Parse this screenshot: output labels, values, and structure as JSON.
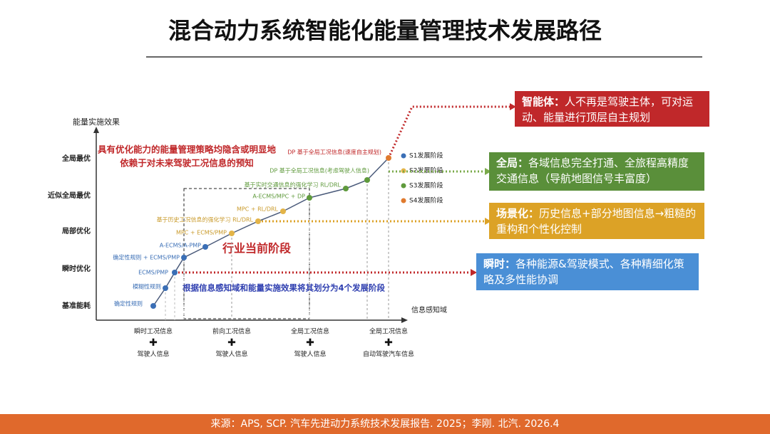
{
  "title": "混合动力系统智能化能量管理技术发展路径",
  "y_axis": {
    "label": "能量实施效果",
    "levels": [
      "全局最优",
      "近似全局最优",
      "局部优化",
      "瞬时优化",
      "基准能耗"
    ]
  },
  "x_axis": {
    "label": "信息感知域",
    "groups": [
      {
        "top": "瞬时工况信息",
        "bottom": "驾驶人信息"
      },
      {
        "top": "前向工况信息",
        "bottom": "驾驶人信息"
      },
      {
        "top": "全局工况信息",
        "bottom": "驾驶人信息"
      },
      {
        "top": "全局工况信息",
        "bottom": "自动驾驶汽车信息"
      }
    ]
  },
  "note": [
    "具有优化能力的能量管理策略均隐含或明显地",
    "依赖于对未来驾驶工况信息的预知"
  ],
  "current_stage": "行业当前阶段",
  "stage_note": "根据信息感知域和能量实施效果将其划分为4个发展阶段",
  "legend": [
    {
      "label": "S1发展阶段",
      "color": "#3b6fb6"
    },
    {
      "label": "S2发展阶段",
      "color": "#e3b448"
    },
    {
      "label": "S3发展阶段",
      "color": "#5f9a3c"
    },
    {
      "label": "S4发展阶段",
      "color": "#e07a2e"
    }
  ],
  "points": [
    {
      "label": "确定性规则",
      "color": "#3b6fb6"
    },
    {
      "label": "模糊性规则",
      "color": "#3b6fb6"
    },
    {
      "label": "ECMS/PMP",
      "color": "#3b6fb6"
    },
    {
      "label": "确定性规则 + ECMS/PMP",
      "color": "#3b6fb6"
    },
    {
      "label": "A-ECMS/A-PMP",
      "color": "#3b6fb6"
    },
    {
      "label": "MPC + ECMS/PMP",
      "color": "#e3b448"
    },
    {
      "label": "基于历史工况信息的强化学习 RL/DRL",
      "color": "#e3b448"
    },
    {
      "label": "MPC + RL/DRL",
      "color": "#e3b448"
    },
    {
      "label": "A-ECMS/MPC + DP",
      "color": "#5f9a3c"
    },
    {
      "label": "基于实时交通信息的强化学习 RL/DRL",
      "color": "#5f9a3c"
    },
    {
      "label": "DP 基于全局工况信息(考虑驾驶人信息)",
      "color": "#5f9a3c"
    },
    {
      "label": "DP 基于全局工况信息(速度自主规划)",
      "color": "#e07a2e"
    }
  ],
  "boxes": [
    {
      "heading": "智能体：",
      "text": "人不再是驾驶主体，可对运动、能量进行顶层自主规划",
      "color": "#c0282a"
    },
    {
      "heading": "全局：",
      "text": "各域信息完全打通、全旅程高精度交通信息（导航地图信号丰富度）",
      "color": "#5a8f3a"
    },
    {
      "heading": "场景化：",
      "text": "历史信息+部分地图信息→粗糙的重构和个性化控制",
      "color": "#dca226"
    },
    {
      "heading": "瞬时：",
      "text": "各种能源&驾驶模式、各种精细化策略及多性能协调",
      "color": "#4a8fd6"
    }
  ],
  "footer": "来源：APS, SCP. 汽车先进动力系统技术发展报告. 2025；李刚. 北汽. 2026.4"
}
